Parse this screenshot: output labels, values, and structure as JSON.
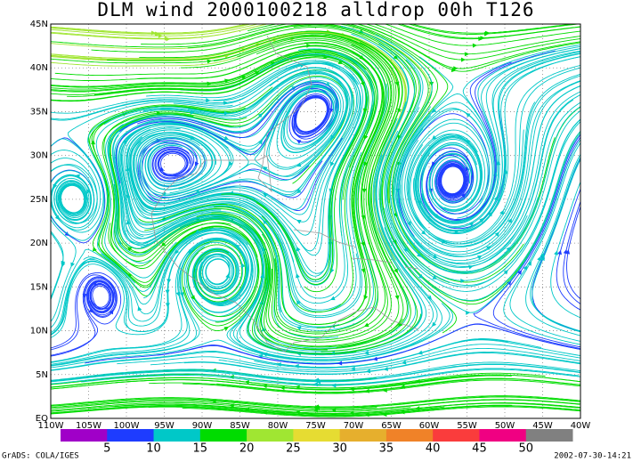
{
  "title": "DLM wind 2000100218 alldrop 00h T126",
  "lat_labels": [
    "45N",
    "40N",
    "35N",
    "30N",
    "25N",
    "20N",
    "15N",
    "10N",
    "5N",
    "EQ"
  ],
  "lon_labels": [
    "110W",
    "105W",
    "100W",
    "95W",
    "90W",
    "85W",
    "80W",
    "75W",
    "70W",
    "65W",
    "60W",
    "55W",
    "50W",
    "45W",
    "40W"
  ],
  "colorbar": {
    "levels": [
      5,
      10,
      15,
      20,
      25,
      30,
      35,
      40,
      45,
      50
    ],
    "colors": [
      "#a000c8",
      "#1e3cff",
      "#00c8c8",
      "#00dc00",
      "#a0e632",
      "#e6dc32",
      "#e6af2d",
      "#f08228",
      "#fa3c3c",
      "#f00082",
      "#808080"
    ]
  },
  "footer_left": "GrADS: COLA/IGES",
  "footer_right": "2002-07-30-14:21"
}
